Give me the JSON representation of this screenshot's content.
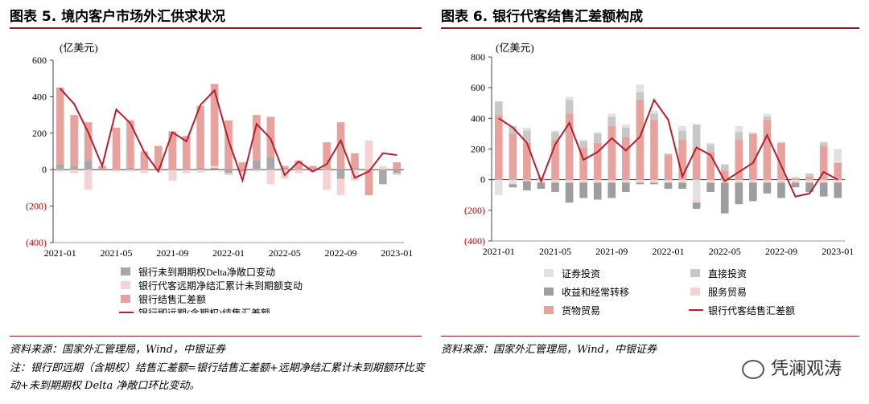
{
  "left": {
    "title": "图表 5. 境内客户市场外汇供求状况",
    "unit": "(亿美元)",
    "source": "资料来源：国家外汇管理局，Wind，中银证券",
    "note": "注：银行即远期（含期权）结售汇差额=银行结售汇差额+远期净结汇累计未到期额环比变动+未到期期权 Delta 净敞口环比变动。"
  },
  "right": {
    "title": "图表 6. 银行代客结售汇差额构成",
    "unit": "(亿美元)",
    "source": "资料来源：国家外汇管理局，Wind，中银证券"
  },
  "watermark": "凭澜观涛",
  "colors": {
    "dark_grey": "#9e9e9e",
    "light_grey": "#c8c8c8",
    "pale_grey": "#e2e2e2",
    "pale_pink": "#f7d2d2",
    "salmon": "#e8a29d",
    "line": "#b4202e",
    "negative_tick": "#c00000"
  },
  "chart_data": [
    {
      "type": "bar",
      "stacked": true,
      "title": "图表 5. 境内客户市场外汇供求状况",
      "ylabel": "(亿美元)",
      "ylim": [
        -400,
        600
      ],
      "yticks": [
        -400,
        -200,
        0,
        200,
        400,
        600
      ],
      "ytick_labels": [
        "(400)",
        "(200)",
        "0",
        "200",
        "400",
        "600"
      ],
      "x_tick_labels": [
        "2021-01",
        "2021-05",
        "2021-09",
        "2022-01",
        "2022-05",
        "2022-09",
        "2023-01"
      ],
      "x_tick_indices": [
        0,
        4,
        8,
        12,
        16,
        20,
        24
      ],
      "categories": [
        "2021-01",
        "2021-02",
        "2021-03",
        "2021-04",
        "2021-05",
        "2021-06",
        "2021-07",
        "2021-08",
        "2021-09",
        "2021-10",
        "2021-11",
        "2021-12",
        "2022-01",
        "2022-02",
        "2022-03",
        "2022-04",
        "2022-05",
        "2022-06",
        "2022-07",
        "2022-08",
        "2022-09",
        "2022-10",
        "2022-11",
        "2022-12",
        "2023-01"
      ],
      "legend_position": "bottom",
      "grid": false,
      "series": [
        {
          "name": "银行未到期期权Delta净敞口变动",
          "kind": "bar",
          "color": "#a8a8a8",
          "values": [
            30,
            20,
            50,
            0,
            0,
            10,
            0,
            0,
            0,
            5,
            10,
            10,
            -20,
            -10,
            50,
            70,
            10,
            0,
            0,
            0,
            -50,
            10,
            0,
            -80,
            -20
          ]
        },
        {
          "name": "银行代客远期净结汇累计未到期额变动",
          "kind": "bar",
          "color": "#f7d2d2",
          "values": [
            -10,
            -20,
            -110,
            0,
            -10,
            -10,
            -20,
            -10,
            -60,
            -20,
            -15,
            10,
            -10,
            -20,
            -10,
            -80,
            -50,
            -20,
            -15,
            -110,
            -90,
            -60,
            160,
            20,
            -10
          ]
        },
        {
          "name": "银行结售汇差额",
          "kind": "bar",
          "color": "#e8a29d",
          "values": [
            420,
            280,
            210,
            20,
            230,
            260,
            100,
            130,
            210,
            180,
            340,
            450,
            270,
            40,
            250,
            220,
            10,
            50,
            20,
            150,
            260,
            80,
            -140,
            0,
            40
          ]
        },
        {
          "name": "银行即远期(含期权)结售汇差额",
          "kind": "line",
          "color": "#b4202e",
          "values": [
            445,
            360,
            205,
            20,
            330,
            255,
            95,
            -10,
            205,
            155,
            355,
            435,
            160,
            -60,
            250,
            170,
            -30,
            45,
            -10,
            30,
            160,
            -45,
            -10,
            90,
            80
          ]
        }
      ]
    },
    {
      "type": "bar",
      "stacked": true,
      "title": "图表 6. 银行代客结售汇差额构成",
      "ylabel": "(亿美元)",
      "ylim": [
        -400,
        800
      ],
      "yticks": [
        -400,
        -200,
        0,
        200,
        400,
        600,
        800
      ],
      "ytick_labels": [
        "(400)",
        "(200)",
        "0",
        "200",
        "400",
        "600",
        "800"
      ],
      "x_tick_labels": [
        "2021-01",
        "2021-05",
        "2021-09",
        "2022-01",
        "2022-05",
        "2022-09",
        "2023-01"
      ],
      "x_tick_indices": [
        0,
        4,
        8,
        12,
        16,
        20,
        24
      ],
      "categories": [
        "2021-01",
        "2021-02",
        "2021-03",
        "2021-04",
        "2021-05",
        "2021-06",
        "2021-07",
        "2021-08",
        "2021-09",
        "2021-10",
        "2021-11",
        "2021-12",
        "2022-01",
        "2022-02",
        "2022-03",
        "2022-04",
        "2022-05",
        "2022-06",
        "2022-07",
        "2022-08",
        "2022-09",
        "2022-10",
        "2022-11",
        "2022-12",
        "2023-01"
      ],
      "legend_position": "bottom",
      "grid": false,
      "series": [
        {
          "name": "货物贸易",
          "kind": "bar",
          "color": "#e8a29d",
          "values": [
            420,
            300,
            240,
            10,
            260,
            430,
            210,
            240,
            350,
            280,
            520,
            390,
            160,
            260,
            200,
            180,
            60,
            260,
            300,
            390,
            240,
            10,
            20,
            220,
            110
          ]
        },
        {
          "name": "直接投资",
          "kind": "bar",
          "color": "#c8c8c8",
          "values": [
            90,
            50,
            80,
            0,
            50,
            90,
            40,
            60,
            60,
            60,
            50,
            40,
            10,
            60,
            160,
            50,
            40,
            50,
            0,
            20,
            0,
            0,
            20,
            20,
            0
          ]
        },
        {
          "name": "证券投资",
          "kind": "bar",
          "color": "#e2e2e2",
          "values": [
            -100,
            -20,
            20,
            10,
            10,
            20,
            10,
            10,
            20,
            20,
            50,
            20,
            0,
            30,
            -130,
            10,
            0,
            40,
            10,
            20,
            10,
            10,
            0,
            10,
            90
          ]
        },
        {
          "name": "服务贸易",
          "kind": "bar",
          "color": "#f7d2d2",
          "values": [
            0,
            -10,
            -10,
            -20,
            -20,
            -20,
            -20,
            -20,
            -20,
            -20,
            -20,
            -20,
            -20,
            -20,
            -20,
            -20,
            -20,
            -20,
            -20,
            -20,
            -20,
            -20,
            -20,
            -20,
            -20
          ]
        },
        {
          "name": "收益和经常转移",
          "kind": "bar",
          "color": "#9e9e9e",
          "values": [
            0,
            -20,
            -60,
            -40,
            -60,
            -130,
            -100,
            -110,
            -100,
            -60,
            -10,
            -10,
            -40,
            -40,
            -40,
            -60,
            -200,
            -140,
            -120,
            -70,
            -100,
            -30,
            -60,
            -90,
            -100
          ]
        },
        {
          "name": "银行代客结售汇差额",
          "kind": "line",
          "color": "#b4202e",
          "values": [
            400,
            340,
            240,
            -10,
            230,
            370,
            130,
            180,
            270,
            190,
            280,
            520,
            390,
            20,
            210,
            160,
            -10,
            50,
            110,
            290,
            90,
            -110,
            -90,
            50,
            0
          ]
        }
      ]
    }
  ]
}
